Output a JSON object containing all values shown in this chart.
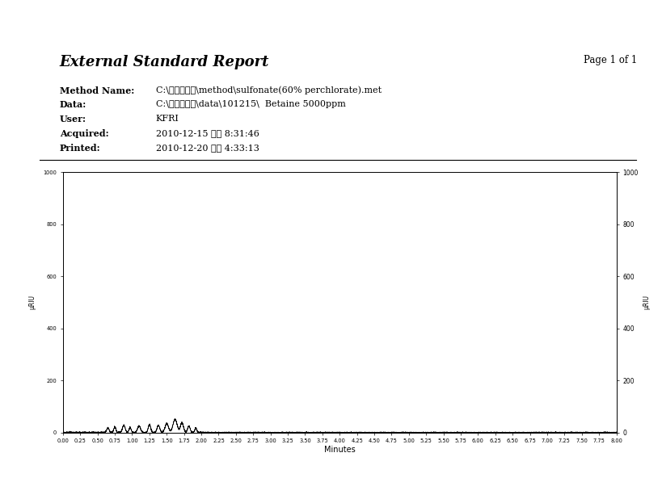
{
  "title": "External Standard Report",
  "page": "Page 1 of 1",
  "method_name": "C:\\계면활성제\\method\\sulfonate(60% perchlorate).met",
  "data_path": "C:\\계면활성제\\data\\101215\\  Betaine 5000ppm",
  "user": "KFRI",
  "acquired": "2010-12-15 오후 8:31:46",
  "printed": "2010-12-20 오후 4:33:13",
  "xlabel": "Minutes",
  "ylabel": "µRIU",
  "xmin": 0.0,
  "xmax": 8.0,
  "ymin": 0,
  "ymax": 1000,
  "yticks": [
    0,
    200,
    400,
    600,
    800,
    1000
  ],
  "xticks": [
    0.0,
    0.25,
    0.5,
    0.75,
    1.0,
    1.25,
    1.5,
    1.75,
    2.0,
    2.25,
    2.5,
    2.75,
    3.0,
    3.25,
    3.5,
    3.75,
    4.0,
    4.25,
    4.5,
    4.75,
    5.0,
    5.25,
    5.5,
    5.75,
    6.0,
    6.25,
    6.5,
    6.75,
    7.0,
    7.25,
    7.5,
    7.75,
    8.0
  ]
}
